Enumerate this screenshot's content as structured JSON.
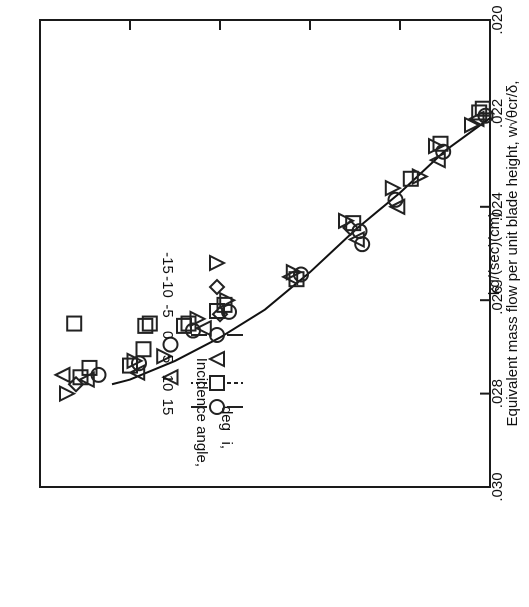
{
  "chart_data": {
    "type": "scatter",
    "title": "",
    "ylabel": "Equivalent mass flow per unit blade height, w√θcr/δ,",
    "yunits": "kg/(sec)(cm)",
    "xlabel": "",
    "ylim": [
      0.02,
      0.03
    ],
    "yticks": [
      ".030",
      ".028",
      ".026",
      ".024",
      ".022",
      ".020"
    ],
    "ytick_values": [
      0.03,
      0.028,
      0.026,
      0.024,
      0.022,
      0.02
    ],
    "x_major_ticks": 5,
    "rotated": "180deg",
    "grid": false,
    "legend": {
      "title": [
        "Incidence angle,",
        "i,",
        "deg"
      ],
      "placement": "top-right",
      "entries": [
        {
          "symbol": "circle",
          "flag": "solid",
          "label": "15"
        },
        {
          "symbol": "square",
          "flag": "dashed",
          "label": "10"
        },
        {
          "symbol": "triangle-right",
          "flag": "none",
          "label": "5"
        },
        {
          "symbol": "circle",
          "flag": "solid",
          "label": "0"
        },
        {
          "symbol": "square",
          "flag": "none",
          "label": "-5"
        },
        {
          "symbol": "diamond",
          "flag": "none",
          "label": "-10"
        },
        {
          "symbol": "triangle-left",
          "flag": "none",
          "label": "-15"
        }
      ]
    },
    "fit_curve": [
      {
        "x": 0.0,
        "y": 0.0221
      },
      {
        "x": 0.5,
        "y": 0.0228
      },
      {
        "x": 1.0,
        "y": 0.0237
      },
      {
        "x": 1.5,
        "y": 0.0245
      },
      {
        "x": 2.0,
        "y": 0.0254
      },
      {
        "x": 2.5,
        "y": 0.0262
      },
      {
        "x": 3.0,
        "y": 0.0268
      },
      {
        "x": 3.5,
        "y": 0.0273
      },
      {
        "x": 4.0,
        "y": 0.0277
      },
      {
        "x": 4.2,
        "y": 0.0278
      }
    ],
    "points": [
      {
        "x": 0.05,
        "y": 0.02205,
        "symbol": "circle"
      },
      {
        "x": 0.12,
        "y": 0.02198,
        "symbol": "square"
      },
      {
        "x": 0.15,
        "y": 0.02212,
        "symbol": "triangle-right"
      },
      {
        "x": 0.2,
        "y": 0.02225,
        "symbol": "triangle-left"
      },
      {
        "x": 0.08,
        "y": 0.0219,
        "symbol": "square"
      },
      {
        "x": 0.52,
        "y": 0.02282,
        "symbol": "circle"
      },
      {
        "x": 0.55,
        "y": 0.02265,
        "symbol": "square"
      },
      {
        "x": 0.58,
        "y": 0.023,
        "symbol": "triangle-right"
      },
      {
        "x": 0.6,
        "y": 0.0227,
        "symbol": "triangle-left"
      },
      {
        "x": 0.88,
        "y": 0.0234,
        "symbol": "square"
      },
      {
        "x": 0.78,
        "y": 0.02335,
        "symbol": "triangle-left"
      },
      {
        "x": 1.05,
        "y": 0.02385,
        "symbol": "circle"
      },
      {
        "x": 1.03,
        "y": 0.024,
        "symbol": "triangle-right"
      },
      {
        "x": 1.08,
        "y": 0.0236,
        "symbol": "triangle-left"
      },
      {
        "x": 1.45,
        "y": 0.02452,
        "symbol": "circle"
      },
      {
        "x": 1.48,
        "y": 0.0247,
        "symbol": "triangle-right"
      },
      {
        "x": 1.52,
        "y": 0.02435,
        "symbol": "square"
      },
      {
        "x": 1.55,
        "y": 0.02445,
        "symbol": "diamond"
      },
      {
        "x": 1.6,
        "y": 0.0243,
        "symbol": "triangle-left"
      },
      {
        "x": 1.42,
        "y": 0.0248,
        "symbol": "circle"
      },
      {
        "x": 2.1,
        "y": 0.02545,
        "symbol": "circle"
      },
      {
        "x": 2.15,
        "y": 0.02555,
        "symbol": "square"
      },
      {
        "x": 2.18,
        "y": 0.0254,
        "symbol": "triangle-left"
      },
      {
        "x": 2.22,
        "y": 0.0255,
        "symbol": "triangle-right"
      },
      {
        "x": 2.9,
        "y": 0.02625,
        "symbol": "circle"
      },
      {
        "x": 2.95,
        "y": 0.0261,
        "symbol": "square"
      },
      {
        "x": 3.0,
        "y": 0.0263,
        "symbol": "diamond"
      },
      {
        "x": 2.92,
        "y": 0.026,
        "symbol": "triangle-left"
      },
      {
        "x": 3.3,
        "y": 0.02665,
        "symbol": "circle"
      },
      {
        "x": 3.35,
        "y": 0.0265,
        "symbol": "square"
      },
      {
        "x": 3.25,
        "y": 0.0264,
        "symbol": "triangle-left"
      },
      {
        "x": 3.18,
        "y": 0.0266,
        "symbol": "triangle-right"
      },
      {
        "x": 3.55,
        "y": 0.02695,
        "symbol": "circle"
      },
      {
        "x": 3.55,
        "y": 0.02765,
        "symbol": "triangle-right"
      },
      {
        "x": 3.85,
        "y": 0.02705,
        "symbol": "square"
      },
      {
        "x": 3.62,
        "y": 0.0272,
        "symbol": "triangle-left"
      },
      {
        "x": 3.4,
        "y": 0.02655,
        "symbol": "square"
      },
      {
        "x": 3.9,
        "y": 0.02735,
        "symbol": "circle"
      },
      {
        "x": 4.0,
        "y": 0.0274,
        "symbol": "square"
      },
      {
        "x": 3.92,
        "y": 0.02755,
        "symbol": "triangle-right"
      },
      {
        "x": 3.95,
        "y": 0.0273,
        "symbol": "triangle-left"
      },
      {
        "x": 4.35,
        "y": 0.0276,
        "symbol": "circle"
      },
      {
        "x": 4.45,
        "y": 0.02745,
        "symbol": "square"
      },
      {
        "x": 4.48,
        "y": 0.0277,
        "symbol": "triangle-right"
      },
      {
        "x": 4.6,
        "y": 0.0278,
        "symbol": "diamond"
      },
      {
        "x": 4.7,
        "y": 0.028,
        "symbol": "triangle-left"
      },
      {
        "x": 4.55,
        "y": 0.02765,
        "symbol": "square"
      },
      {
        "x": 4.75,
        "y": 0.0276,
        "symbol": "triangle-right"
      },
      {
        "x": 4.62,
        "y": 0.0265,
        "symbol": "square"
      },
      {
        "x": 3.83,
        "y": 0.02655,
        "symbol": "square"
      },
      {
        "x": 3.78,
        "y": 0.0265,
        "symbol": "square"
      }
    ]
  }
}
